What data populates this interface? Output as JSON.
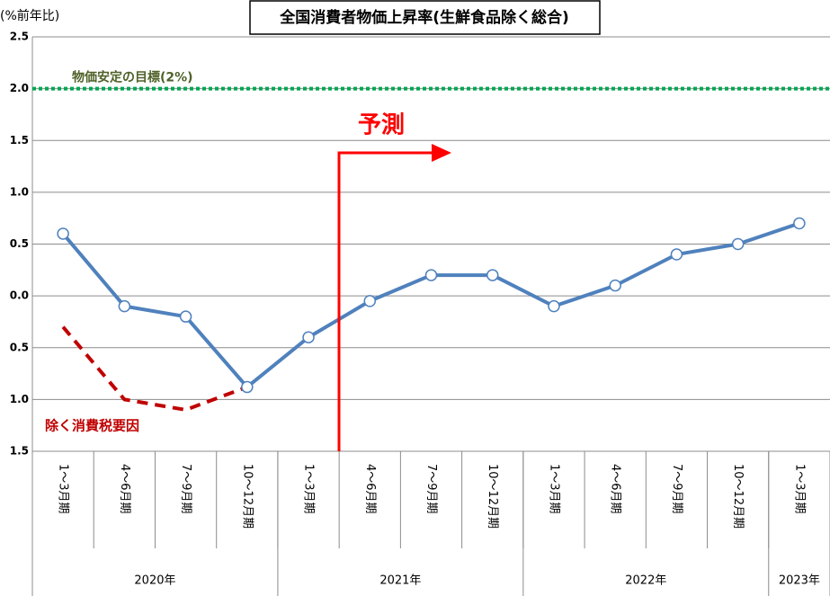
{
  "chart_data": {
    "type": "line",
    "title": "全国消費者物価上昇率(生鮮食品除く総合)",
    "y_label": "(%前年比)",
    "categories": [
      "1～3月期",
      "4～6月期",
      "7～9月期",
      "10～12月期",
      "1～3月期",
      "4～6月期",
      "7～9月期",
      "10～12月期",
      "1～3月期",
      "4～6月期",
      "7～9月期",
      "10～12月期",
      "1～3月期"
    ],
    "year_groups": [
      {
        "label": "2020年",
        "span": 4
      },
      {
        "label": "2021年",
        "span": 4
      },
      {
        "label": "2022年",
        "span": 4
      },
      {
        "label": "2023年",
        "span": 1
      }
    ],
    "series": [
      {
        "color": "#4f81bd",
        "values": [
          0.6,
          -0.1,
          -0.2,
          -0.88,
          -0.4,
          -0.05,
          0.2,
          0.2,
          -0.1,
          0.1,
          0.4,
          0.5,
          0.7
        ]
      },
      {
        "name": "除く消費税要因",
        "color": "#c00000",
        "dashed": true,
        "values": [
          -0.3,
          -1.0,
          -1.1,
          -0.88,
          null,
          null,
          null,
          null,
          null,
          null,
          null,
          null,
          null
        ]
      }
    ],
    "ylim": [
      -1.5,
      2.5
    ],
    "yticks": [
      {
        "value": -1.5,
        "label": "1.5"
      },
      {
        "value": -1.0,
        "label": "1.0"
      },
      {
        "value": -0.5,
        "label": "0.5"
      },
      {
        "value": 0,
        "label": "0.0"
      },
      0.5,
      {
        "value": 1,
        "label": "1.0"
      },
      1.5,
      {
        "value": 2,
        "label": "2.0"
      },
      2.5
    ],
    "grid": true,
    "target": {
      "value": 2,
      "label": "物価安定の目標(2%)",
      "color": "#00a651"
    },
    "forecast_label": "予測"
  }
}
